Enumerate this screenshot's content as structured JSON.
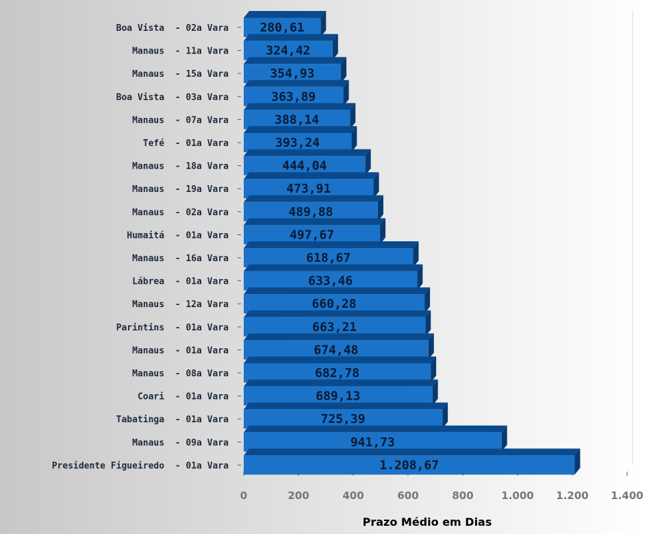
{
  "chart_data": {
    "type": "bar",
    "orientation": "horizontal",
    "style": "3d",
    "title": "",
    "xlabel": "Prazo Médio em Dias",
    "ylabel": "",
    "xlim": [
      0,
      1400
    ],
    "x_ticks": [
      0,
      200,
      400,
      600,
      800,
      1000,
      1200,
      1400
    ],
    "x_tick_labels": [
      "0",
      "200",
      "400",
      "600",
      "800",
      "1.000",
      "1.200",
      "1.400"
    ],
    "grid": false,
    "legend": "none",
    "categories": [
      "Boa Vista  - 02a Vara",
      "Manaus  - 11a Vara",
      "Manaus  - 15a Vara",
      "Boa Vista  - 03a Vara",
      "Manaus  - 07a Vara",
      "Tefé  - 01a Vara",
      "Manaus  - 18a Vara",
      "Manaus  - 19a Vara",
      "Manaus  - 02a Vara",
      "Humaitá  - 01a Vara",
      "Manaus  - 16a Vara",
      "Lábrea  - 01a Vara",
      "Manaus  - 12a Vara",
      "Parintins  - 01a Vara",
      "Manaus  - 01a Vara",
      "Manaus  - 08a Vara",
      "Coari  - 01a Vara",
      "Tabatinga  - 01a Vara",
      "Manaus  - 09a Vara",
      "Presidente Figueiredo  - 01a Vara"
    ],
    "values": [
      280.61,
      324.42,
      354.93,
      363.89,
      388.14,
      393.24,
      444.04,
      473.91,
      489.88,
      497.67,
      618.67,
      633.46,
      660.28,
      663.21,
      674.48,
      682.78,
      689.13,
      725.39,
      941.73,
      1208.67
    ],
    "value_labels": [
      "280,61",
      "324,42",
      "354,93",
      "363,89",
      "388,14",
      "393,24",
      "444,04",
      "473,91",
      "489,88",
      "497,67",
      "618,67",
      "633,46",
      "660,28",
      "663,21",
      "674,48",
      "682,78",
      "689,13",
      "725,39",
      "941,73",
      "1.208,67"
    ],
    "colors": {
      "bar_front": "#1a73c8",
      "bar_top": "#0a4a8c",
      "bar_side": "#083a70",
      "background_left": "#c8c8c8",
      "background_right": "#ffffff"
    }
  }
}
